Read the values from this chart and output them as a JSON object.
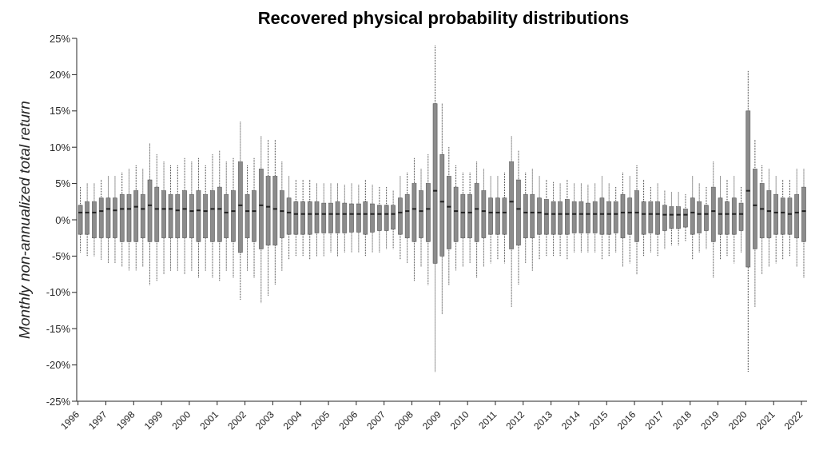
{
  "chart_data": {
    "type": "box",
    "title": "Recovered physical probability distributions",
    "ylabel": "Monthly non-annualized total return",
    "color": "#8c8c8c",
    "xlim": [
      "1995-12-15",
      "2022-03-15"
    ],
    "xticks": [
      "1996",
      "1997",
      "1998",
      "1999",
      "2000",
      "2001",
      "2002",
      "2003",
      "2004",
      "2005",
      "2006",
      "2007",
      "2008",
      "2009",
      "2010",
      "2011",
      "2012",
      "2013",
      "2014",
      "2015",
      "2016",
      "2017",
      "2018",
      "2019",
      "2020",
      "2021",
      "2022"
    ],
    "ylim": [
      -25,
      25
    ],
    "yticks": [
      {
        "value": -25,
        "label": "-25%"
      },
      {
        "value": -20,
        "label": "-20%"
      },
      {
        "value": -15,
        "label": "-15%"
      },
      {
        "value": -10,
        "label": "-10%"
      },
      {
        "value": -5,
        "label": "-5%"
      },
      {
        "value": 0,
        "label": "0%"
      },
      {
        "value": 5,
        "label": "5%"
      },
      {
        "value": 10,
        "label": "10%"
      },
      {
        "value": 15,
        "label": "15%"
      },
      {
        "value": 20,
        "label": "20%"
      },
      {
        "value": 25,
        "label": "25%"
      }
    ],
    "x": [
      "1996-02",
      "1996-05",
      "1996-08",
      "1996-11",
      "1997-02",
      "1997-05",
      "1997-08",
      "1997-11",
      "1998-02",
      "1998-05",
      "1998-08",
      "1998-11",
      "1999-02",
      "1999-05",
      "1999-08",
      "1999-11",
      "2000-02",
      "2000-05",
      "2000-08",
      "2000-11",
      "2001-02",
      "2001-05",
      "2001-08",
      "2001-11",
      "2002-02",
      "2002-05",
      "2002-08",
      "2002-11",
      "2003-02",
      "2003-05",
      "2003-08",
      "2003-11",
      "2004-02",
      "2004-05",
      "2004-08",
      "2004-11",
      "2005-02",
      "2005-05",
      "2005-08",
      "2005-11",
      "2006-02",
      "2006-05",
      "2006-08",
      "2006-11",
      "2007-02",
      "2007-05",
      "2007-08",
      "2007-11",
      "2008-02",
      "2008-05",
      "2008-08",
      "2008-11",
      "2009-02",
      "2009-05",
      "2009-08",
      "2009-11",
      "2010-02",
      "2010-05",
      "2010-08",
      "2010-11",
      "2011-02",
      "2011-05",
      "2011-08",
      "2011-11",
      "2012-02",
      "2012-05",
      "2012-08",
      "2012-11",
      "2013-02",
      "2013-05",
      "2013-08",
      "2013-11",
      "2014-02",
      "2014-05",
      "2014-08",
      "2014-11",
      "2015-02",
      "2015-05",
      "2015-08",
      "2015-11",
      "2016-02",
      "2016-05",
      "2016-08",
      "2016-11",
      "2017-02",
      "2017-05",
      "2017-08",
      "2017-11",
      "2018-02",
      "2018-05",
      "2018-08",
      "2018-11",
      "2019-02",
      "2019-05",
      "2019-08",
      "2019-11",
      "2020-02",
      "2020-05",
      "2020-08",
      "2020-11",
      "2021-02",
      "2021-05",
      "2021-08",
      "2021-11",
      "2022-02"
    ],
    "boxes": [
      {
        "low": -4.5,
        "q1": -2,
        "median": 1,
        "q3": 2,
        "high": 4.5
      },
      {
        "low": -5,
        "q1": -2,
        "median": 1,
        "q3": 2.5,
        "high": 5
      },
      {
        "low": -5,
        "q1": -2.5,
        "median": 1,
        "q3": 2.5,
        "high": 5
      },
      {
        "low": -5.5,
        "q1": -2.5,
        "median": 1.2,
        "q3": 3,
        "high": 5.5
      },
      {
        "low": -6,
        "q1": -2.5,
        "median": 1.5,
        "q3": 3,
        "high": 6
      },
      {
        "low": -6,
        "q1": -2.5,
        "median": 1.3,
        "q3": 3,
        "high": 6
      },
      {
        "low": -6.5,
        "q1": -3,
        "median": 1.5,
        "q3": 3.5,
        "high": 6.5
      },
      {
        "low": -7,
        "q1": -3,
        "median": 1.5,
        "q3": 3.5,
        "high": 7
      },
      {
        "low": -7,
        "q1": -3,
        "median": 1.8,
        "q3": 4,
        "high": 7.5
      },
      {
        "low": -6.5,
        "q1": -2.5,
        "median": 1.5,
        "q3": 3.5,
        "high": 7
      },
      {
        "low": -9,
        "q1": -3,
        "median": 2,
        "q3": 5.5,
        "high": 10.5
      },
      {
        "low": -8.5,
        "q1": -3,
        "median": 1.5,
        "q3": 4.5,
        "high": 9
      },
      {
        "low": -7.5,
        "q1": -2.5,
        "median": 1.5,
        "q3": 4,
        "high": 8
      },
      {
        "low": -7,
        "q1": -2.5,
        "median": 1.5,
        "q3": 3.5,
        "high": 7.5
      },
      {
        "low": -7,
        "q1": -2.5,
        "median": 1.3,
        "q3": 3.5,
        "high": 7.5
      },
      {
        "low": -7.5,
        "q1": -2.5,
        "median": 1.5,
        "q3": 4,
        "high": 8.5
      },
      {
        "low": -7,
        "q1": -2.5,
        "median": 1.2,
        "q3": 3.5,
        "high": 8
      },
      {
        "low": -8,
        "q1": -3,
        "median": 1.3,
        "q3": 4,
        "high": 8.5
      },
      {
        "low": -7,
        "q1": -2.5,
        "median": 1.2,
        "q3": 3.5,
        "high": 7.5
      },
      {
        "low": -8,
        "q1": -3,
        "median": 1.5,
        "q3": 4,
        "high": 9
      },
      {
        "low": -8.5,
        "q1": -3,
        "median": 1.5,
        "q3": 4.5,
        "high": 9.5
      },
      {
        "low": -7,
        "q1": -2.5,
        "median": 1,
        "q3": 3.5,
        "high": 8
      },
      {
        "low": -8,
        "q1": -3,
        "median": 1.2,
        "q3": 4,
        "high": 8.5
      },
      {
        "low": -11,
        "q1": -4.5,
        "median": 2,
        "q3": 8,
        "high": 13.5
      },
      {
        "low": -7,
        "q1": -2.5,
        "median": 1.2,
        "q3": 3.5,
        "high": 7.5
      },
      {
        "low": -8,
        "q1": -3,
        "median": 1.2,
        "q3": 4,
        "high": 8.5
      },
      {
        "low": -11.5,
        "q1": -4,
        "median": 2,
        "q3": 7,
        "high": 11.5
      },
      {
        "low": -10.5,
        "q1": -3.5,
        "median": 1.8,
        "q3": 6,
        "high": 11
      },
      {
        "low": -9,
        "q1": -3.5,
        "median": 1.5,
        "q3": 6,
        "high": 11
      },
      {
        "low": -7,
        "q1": -2.5,
        "median": 1.2,
        "q3": 4,
        "high": 8
      },
      {
        "low": -5.5,
        "q1": -2,
        "median": 1,
        "q3": 3,
        "high": 6
      },
      {
        "low": -5,
        "q1": -2,
        "median": 0.8,
        "q3": 2.5,
        "high": 5.5
      },
      {
        "low": -5,
        "q1": -2,
        "median": 0.8,
        "q3": 2.5,
        "high": 5.5
      },
      {
        "low": -5.5,
        "q1": -2,
        "median": 0.8,
        "q3": 2.5,
        "high": 5.5
      },
      {
        "low": -5,
        "q1": -1.8,
        "median": 0.8,
        "q3": 2.5,
        "high": 5
      },
      {
        "low": -5,
        "q1": -1.8,
        "median": 0.8,
        "q3": 2.3,
        "high": 5
      },
      {
        "low": -4.5,
        "q1": -1.8,
        "median": 0.8,
        "q3": 2.3,
        "high": 5
      },
      {
        "low": -5,
        "q1": -1.8,
        "median": 0.8,
        "q3": 2.5,
        "high": 5
      },
      {
        "low": -4.5,
        "q1": -1.8,
        "median": 0.8,
        "q3": 2.3,
        "high": 4.8
      },
      {
        "low": -4.5,
        "q1": -1.7,
        "median": 0.8,
        "q3": 2.2,
        "high": 5
      },
      {
        "low": -4.5,
        "q1": -1.7,
        "median": 0.8,
        "q3": 2.2,
        "high": 4.8
      },
      {
        "low": -5,
        "q1": -2,
        "median": 0.8,
        "q3": 2.5,
        "high": 5.5
      },
      {
        "low": -4.5,
        "q1": -1.7,
        "median": 0.8,
        "q3": 2.2,
        "high": 4.8
      },
      {
        "low": -4.5,
        "q1": -1.5,
        "median": 0.8,
        "q3": 2,
        "high": 4.5
      },
      {
        "low": -4,
        "q1": -1.5,
        "median": 0.8,
        "q3": 2,
        "high": 4.5
      },
      {
        "low": -4,
        "q1": -1.3,
        "median": 0.8,
        "q3": 2,
        "high": 4
      },
      {
        "low": -5.5,
        "q1": -2,
        "median": 1,
        "q3": 3,
        "high": 6
      },
      {
        "low": -6,
        "q1": -2.5,
        "median": 1.2,
        "q3": 3.5,
        "high": 6.5
      },
      {
        "low": -8.5,
        "q1": -3,
        "median": 1.5,
        "q3": 5,
        "high": 8.5
      },
      {
        "low": -6.5,
        "q1": -2.5,
        "median": 1.2,
        "q3": 4,
        "high": 7
      },
      {
        "low": -9,
        "q1": -3,
        "median": 1.5,
        "q3": 5,
        "high": 9
      },
      {
        "low": -21,
        "q1": -6,
        "median": 4,
        "q3": 16,
        "high": 24
      },
      {
        "low": -13,
        "q1": -5,
        "median": 2.5,
        "q3": 9,
        "high": 16
      },
      {
        "low": -9,
        "q1": -4,
        "median": 1.8,
        "q3": 6,
        "high": 10
      },
      {
        "low": -7,
        "q1": -3,
        "median": 1.2,
        "q3": 4.5,
        "high": 7.5
      },
      {
        "low": -6.5,
        "q1": -2.5,
        "median": 1,
        "q3": 3.5,
        "high": 6.5
      },
      {
        "low": -6,
        "q1": -2.5,
        "median": 1,
        "q3": 3.5,
        "high": 6.5
      },
      {
        "low": -8,
        "q1": -3,
        "median": 1.5,
        "q3": 5,
        "high": 8
      },
      {
        "low": -6.5,
        "q1": -2.5,
        "median": 1.2,
        "q3": 4,
        "high": 7
      },
      {
        "low": -6,
        "q1": -2,
        "median": 1,
        "q3": 3,
        "high": 6
      },
      {
        "low": -5.5,
        "q1": -2,
        "median": 1,
        "q3": 3,
        "high": 6
      },
      {
        "low": -6,
        "q1": -2,
        "median": 1,
        "q3": 3,
        "high": 6.5
      },
      {
        "low": -12,
        "q1": -4,
        "median": 2.5,
        "q3": 8,
        "high": 11.5
      },
      {
        "low": -9,
        "q1": -3.5,
        "median": 1.5,
        "q3": 5.5,
        "high": 9.5
      },
      {
        "low": -6,
        "q1": -2.5,
        "median": 1,
        "q3": 3.5,
        "high": 6.5
      },
      {
        "low": -7,
        "q1": -2.5,
        "median": 1,
        "q3": 3.5,
        "high": 7
      },
      {
        "low": -5.5,
        "q1": -2,
        "median": 1,
        "q3": 3,
        "high": 6
      },
      {
        "low": -5,
        "q1": -2,
        "median": 0.8,
        "q3": 2.8,
        "high": 5.5
      },
      {
        "low": -5,
        "q1": -2,
        "median": 0.8,
        "q3": 2.5,
        "high": 5.2
      },
      {
        "low": -5,
        "q1": -2,
        "median": 0.8,
        "q3": 2.5,
        "high": 5
      },
      {
        "low": -5.5,
        "q1": -2,
        "median": 0.8,
        "q3": 2.8,
        "high": 5.5
      },
      {
        "low": -4.5,
        "q1": -1.8,
        "median": 0.8,
        "q3": 2.5,
        "high": 5
      },
      {
        "low": -4.5,
        "q1": -1.8,
        "median": 0.8,
        "q3": 2.5,
        "high": 5
      },
      {
        "low": -4.5,
        "q1": -1.8,
        "median": 0.8,
        "q3": 2.3,
        "high": 4.8
      },
      {
        "low": -4.5,
        "q1": -1.8,
        "median": 0.8,
        "q3": 2.5,
        "high": 5
      },
      {
        "low": -5.5,
        "q1": -2,
        "median": 0.8,
        "q3": 3,
        "high": 6
      },
      {
        "low": -5,
        "q1": -2,
        "median": 0.8,
        "q3": 2.5,
        "high": 5
      },
      {
        "low": -4.5,
        "q1": -1.8,
        "median": 0.8,
        "q3": 2.5,
        "high": 4.5
      },
      {
        "low": -6.5,
        "q1": -2.5,
        "median": 1,
        "q3": 3.5,
        "high": 6.5
      },
      {
        "low": -6,
        "q1": -2,
        "median": 1,
        "q3": 3,
        "high": 6
      },
      {
        "low": -7.5,
        "q1": -3,
        "median": 1,
        "q3": 4,
        "high": 7.5
      },
      {
        "low": -5,
        "q1": -2,
        "median": 0.8,
        "q3": 2.5,
        "high": 5.5
      },
      {
        "low": -4.5,
        "q1": -1.8,
        "median": 0.8,
        "q3": 2.5,
        "high": 4.5
      },
      {
        "low": -5,
        "q1": -2,
        "median": 0.8,
        "q3": 2.5,
        "high": 5
      },
      {
        "low": -4,
        "q1": -1.5,
        "median": 0.7,
        "q3": 2,
        "high": 4
      },
      {
        "low": -3.5,
        "q1": -1.2,
        "median": 0.7,
        "q3": 1.8,
        "high": 3.8
      },
      {
        "low": -3.5,
        "q1": -1.2,
        "median": 0.7,
        "q3": 1.8,
        "high": 3.8
      },
      {
        "low": -3,
        "q1": -1,
        "median": 0.7,
        "q3": 1.5,
        "high": 3.5
      },
      {
        "low": -5.5,
        "q1": -2,
        "median": 1,
        "q3": 3,
        "high": 6
      },
      {
        "low": -4.5,
        "q1": -1.8,
        "median": 0.8,
        "q3": 2.5,
        "high": 5
      },
      {
        "low": -4,
        "q1": -1.5,
        "median": 0.8,
        "q3": 2,
        "high": 4.5
      },
      {
        "low": -8,
        "q1": -3,
        "median": 1.2,
        "q3": 4.5,
        "high": 8
      },
      {
        "low": -5.5,
        "q1": -2,
        "median": 0.8,
        "q3": 3,
        "high": 6
      },
      {
        "low": -5,
        "q1": -2,
        "median": 0.8,
        "q3": 2.5,
        "high": 5.5
      },
      {
        "low": -6,
        "q1": -2,
        "median": 0.8,
        "q3": 3,
        "high": 6
      },
      {
        "low": -4.5,
        "q1": -1.5,
        "median": 0.8,
        "q3": 2.3,
        "high": 4.5
      },
      {
        "low": -21,
        "q1": -6.5,
        "median": 4,
        "q3": 15,
        "high": 20.5
      },
      {
        "low": -12,
        "q1": -4,
        "median": 2,
        "q3": 7,
        "high": 11
      },
      {
        "low": -7.5,
        "q1": -2.5,
        "median": 1.5,
        "q3": 5,
        "high": 7.5
      },
      {
        "low": -6.5,
        "q1": -2.5,
        "median": 1.2,
        "q3": 4,
        "high": 7
      },
      {
        "low": -6,
        "q1": -2,
        "median": 1,
        "q3": 3.5,
        "high": 6
      },
      {
        "low": -5.5,
        "q1": -2,
        "median": 1,
        "q3": 3,
        "high": 5.5
      },
      {
        "low": -5,
        "q1": -2,
        "median": 0.8,
        "q3": 3,
        "high": 5.5
      },
      {
        "low": -6.5,
        "q1": -2.5,
        "median": 1,
        "q3": 3.5,
        "high": 7
      },
      {
        "low": -8,
        "q1": -3,
        "median": 1.2,
        "q3": 4.5,
        "high": 7
      }
    ]
  }
}
